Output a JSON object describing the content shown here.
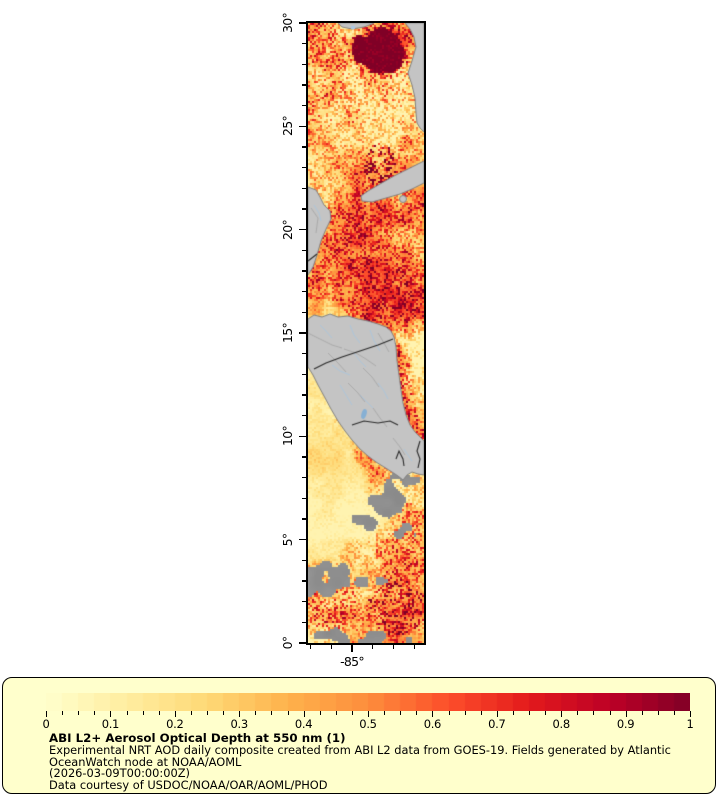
{
  "map": {
    "y_axis": {
      "tick_labels": [
        "30°",
        "25°",
        "20°",
        "15°",
        "10°",
        "5°",
        "0°"
      ],
      "lat_min": 0,
      "lat_max": 30,
      "minor_step_deg": 1,
      "major_step_deg": 5
    },
    "x_axis": {
      "label": "-85°",
      "minor_step_deg": 1
    }
  },
  "legend": {
    "title": "ABI L2+ Aerosol Optical Depth at 550 nm (1)",
    "lines": [
      "Experimental NRT AOD daily composite created from ABI L2 data from GOES-19. Fields generated by Atlantic",
      "OceanWatch node at NOAA/AOML",
      "(2026-03-09T00:00:00Z)",
      "Data courtesy of USDOC/NOAA/OAR/AOML/PHOD"
    ],
    "background_color": "#ffffcc"
  },
  "chart_data": {
    "type": "heatmap",
    "title": "ABI L2+ Aerosol Optical Depth at 550 nm (1)",
    "variable": "Aerosol Optical Depth at 550 nm",
    "value_range": [
      0,
      1
    ],
    "lat_axis": {
      "range_deg": [
        0,
        30
      ],
      "tick_labels": [
        "0°",
        "5°",
        "10°",
        "15°",
        "20°",
        "25°",
        "30°"
      ],
      "minor_step_deg": 1
    },
    "lon_axis": {
      "tick_labels": [
        "-85°"
      ],
      "minor_step_deg": 1
    },
    "colorbar": {
      "tick_labels": [
        "0",
        "0.1",
        "0.2",
        "0.3",
        "0.4",
        "0.5",
        "0.6",
        "0.7",
        "0.8",
        "0.9",
        "1"
      ],
      "levels": 40
    },
    "colormap_stops": [
      [
        0,
        "#ffffcc"
      ],
      [
        0.125,
        "#ffeda0"
      ],
      [
        0.25,
        "#fed976"
      ],
      [
        0.375,
        "#feb24c"
      ],
      [
        0.5,
        "#fd8d3c"
      ],
      [
        0.625,
        "#fc4e2a"
      ],
      [
        0.75,
        "#e31a1c"
      ],
      [
        0.875,
        "#bd0026"
      ],
      [
        1,
        "#800026"
      ]
    ],
    "land_color": "#c4c4c4",
    "missing_data_color": "#8f8f8f"
  }
}
